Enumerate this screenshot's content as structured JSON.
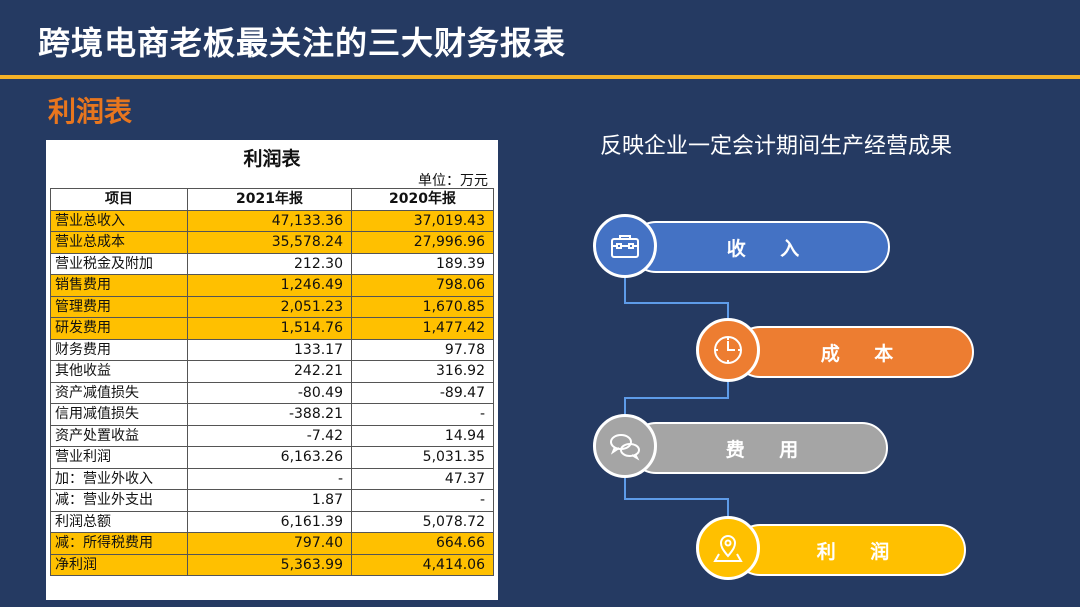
{
  "header": {
    "title": "跨境电商老板最关注的三大财务报表",
    "section": "利润表"
  },
  "sheet": {
    "title": "利润表",
    "unit": "单位：万元",
    "headers": [
      "项目",
      "2021年报",
      "2020年报"
    ],
    "rows": [
      {
        "label": "营业总收入",
        "y2021": "47,133.36",
        "y2020": "37,019.43"
      },
      {
        "label": "营业总成本",
        "y2021": "35,578.24",
        "y2020": "27,996.96"
      },
      {
        "label": "营业税金及附加",
        "y2021": "212.30",
        "y2020": "189.39"
      },
      {
        "label": "销售费用",
        "y2021": "1,246.49",
        "y2020": "798.06"
      },
      {
        "label": "管理费用",
        "y2021": "2,051.23",
        "y2020": "1,670.85"
      },
      {
        "label": "研发费用",
        "y2021": "1,514.76",
        "y2020": "1,477.42"
      },
      {
        "label": "财务费用",
        "y2021": "133.17",
        "y2020": "97.78"
      },
      {
        "label": "其他收益",
        "y2021": "242.21",
        "y2020": "316.92"
      },
      {
        "label": "资产减值损失",
        "y2021": "-80.49",
        "y2020": "-89.47"
      },
      {
        "label": "信用减值损失",
        "y2021": "-388.21",
        "y2020": "-"
      },
      {
        "label": "资产处置收益",
        "y2021": "-7.42",
        "y2020": "14.94"
      },
      {
        "label": "营业利润",
        "y2021": "6,163.26",
        "y2020": "5,031.35"
      },
      {
        "label": "加：营业外收入",
        "y2021": "-",
        "y2020": "47.37"
      },
      {
        "label": "减：营业外支出",
        "y2021": "1.87",
        "y2020": "-"
      },
      {
        "label": "利润总额",
        "y2021": "6,161.39",
        "y2020": "5,078.72"
      },
      {
        "label": "减：所得税费用",
        "y2021": "797.40",
        "y2020": "664.66"
      },
      {
        "label": "净利润",
        "y2021": "5,363.99",
        "y2020": "4,414.06"
      }
    ],
    "highlight_color": "#FFC000"
  },
  "diagram": {
    "subtitle": "反映企业一定会计期间生产经营成果",
    "steps": [
      {
        "label": "收 入",
        "icon": "briefcase-icon",
        "color": "#4472C4"
      },
      {
        "label": "成 本",
        "icon": "clock-icon",
        "color": "#ED7D31"
      },
      {
        "label": "费 用",
        "icon": "chat-bubbles-icon",
        "color": "#A5A5A5"
      },
      {
        "label": "利 润",
        "icon": "map-pin-icon",
        "color": "#FFC000"
      }
    ]
  },
  "colors": {
    "background": "#253A62",
    "accent_rule": "#F5B227",
    "section_title": "#E8761E"
  }
}
